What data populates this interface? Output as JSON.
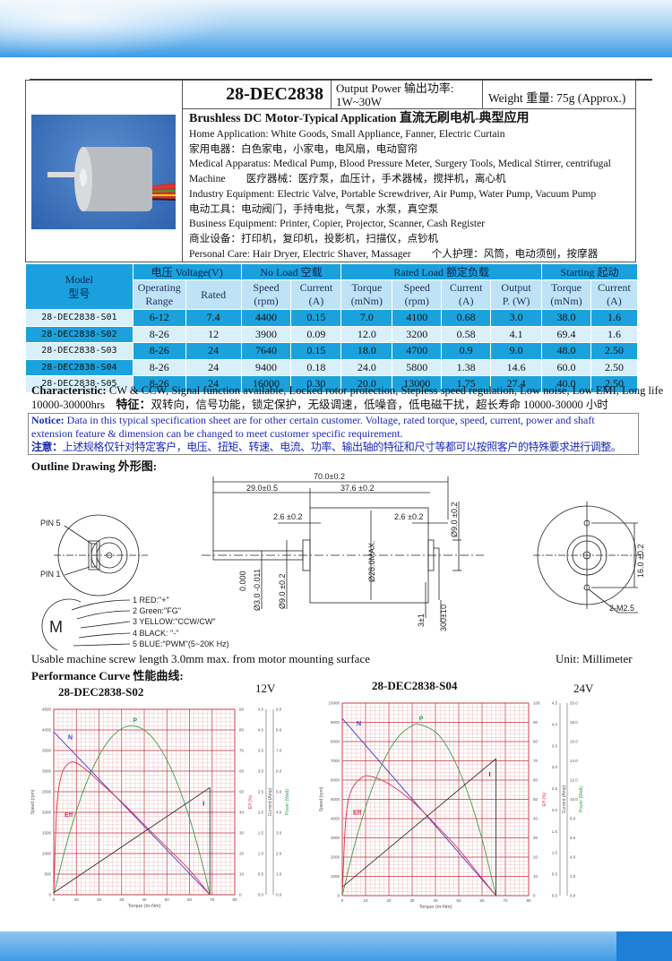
{
  "header": {
    "model": "28-DEC2838",
    "output_power_label": "Output Power 输出功率:",
    "output_power_value": "1W~30W",
    "weight": "Weight 重量: 75g (Approx.)"
  },
  "applications": {
    "heading_main": "Brushless DC Motor",
    "heading_sub": "-Typical Application",
    "heading_cn": " 直流无刷电机-典型应用",
    "lines": [
      "Home Application: White Goods, Small Appliance, Fanner, Electric Curtain",
      "家用电器：白色家电，小家电，电风扇，电动窗帘",
      "Medical Apparatus: Medical Pump, Blood Pressure Meter, Surgery Tools, Medical Stirrer, centrifugal",
      "Machine　　医疗器械：医疗泵，血压计，手术器械，搅拌机，离心机",
      "Industry Equipment: Electric Valve, Portable Screwdriver, Air Pump, Water Pump, Vacuum Pump",
      "电动工具：电动阀门，手持电批，气泵，水泵，真空泵",
      "Business Equipment: Printer, Copier, Projector, Scanner, Cash Register",
      "商业设备：打印机，复印机，投影机，扫描仪，点钞机",
      "Personal Care: Hair Dryer, Electric Shaver, Massager　　个人护理：风筒，电动须刨，按摩器"
    ]
  },
  "spec_table": {
    "groups": {
      "model": "Model",
      "model_cn": "型号",
      "voltage": "电压 Voltage(V)",
      "no_load": "No Load 空载",
      "rated_load": "Rated Load 额定负载",
      "starting": "Starting 起动"
    },
    "columns": [
      [
        "Operating",
        "Range"
      ],
      [
        "Rated",
        ""
      ],
      [
        "Speed",
        "(rpm)"
      ],
      [
        "Current",
        "(A)"
      ],
      [
        "Torque",
        "(mNm)"
      ],
      [
        "Speed",
        "(rpm)"
      ],
      [
        "Current",
        "(A)"
      ],
      [
        "Output",
        "P. (W)"
      ],
      [
        "Torque",
        "(mNm)"
      ],
      [
        "Current",
        "(A)"
      ]
    ],
    "rows": [
      [
        "28-DEC2838-S01",
        "6-12",
        "7.4",
        "4400",
        "0.15",
        "7.0",
        "4100",
        "0.68",
        "3.0",
        "38.0",
        "1.6"
      ],
      [
        "28-DEC2838-S02",
        "8-26",
        "12",
        "3900",
        "0.09",
        "12.0",
        "3200",
        "0.58",
        "4.1",
        "69.4",
        "1.6"
      ],
      [
        "28-DEC2838-S03",
        "8-26",
        "24",
        "7640",
        "0.15",
        "18.0",
        "4700",
        "0.9",
        "9.0",
        "48.0",
        "2.50"
      ],
      [
        "28-DEC2838-S04",
        "8-26",
        "24",
        "9400",
        "0.18",
        "24.0",
        "5800",
        "1.38",
        "14.6",
        "60.0",
        "2.50"
      ],
      [
        "28-DEC2838-S05",
        "8-26",
        "24",
        "16000",
        "0.30",
        "20.0",
        "13000",
        "1.75",
        "27.4",
        "40.0",
        "2.50"
      ]
    ]
  },
  "characteristic": {
    "label": "Characteristic:",
    "text": " CW & CCW, Signal function available, Locked rotor protection, Stepless speed regulation, Low noise, Low EMI, Long life",
    "text2": "10000-30000hrs　",
    "label_cn": "特征：",
    "text_cn": "双转向，信号功能，锁定保护，无级调速，低噪音，低电磁干扰，超长寿命 10000-30000 小时"
  },
  "notice": {
    "label": "Notice:",
    "text": " Data in this typical specification sheet are for other certain customer. Voltage, rated torque, speed, current, power and shaft extension feature & dimension can be changed to meet customer specific requirement.",
    "label_cn": "注意：",
    "text_cn": "上述规格仅针对特定客户，电压、扭矩、转速、电流、功率、输出轴的特征和尺寸等都可以按照客户的特殊要求进行调整。"
  },
  "outline": {
    "heading": "Outline Drawing 外形图:",
    "pin5": "PIN 5",
    "pin1": "PIN 1",
    "motor_symbol": "M",
    "wires": [
      "1 RED:\"+\"",
      "2 Green:\"FG\"",
      "3 YELLOW:\"CCW/CW\"",
      "4 BLACK: \"-\"",
      "5 BLUE:\"PWM\"(5~20K Hz)"
    ],
    "dims": {
      "total": "70.0±0.2",
      "shaft": "29.0±0.5",
      "body": "37.6 ±0.2",
      "front_boss": "2.6 ±0.2",
      "rear_boss": "2.6 ±0.2",
      "rear_dia": "Ø9.0 ±0.2",
      "body_dia": "Ø28.0MAX.",
      "shaft_dia": "Ø3.0 -0.011",
      "shaft_tol": "0.000",
      "boss_dia": "Ø9.0 ±0.2",
      "cable_a": "3±1",
      "cable_b": "300±10",
      "hole_spacing": "16.0 ±0.2",
      "screw": "2-M2.5"
    },
    "screw_note": "Usable machine screw length 3.0mm max. from motor mounting surface",
    "unit": "Unit: Millimeter"
  },
  "performance_heading": "Performance Curve 性能曲线:",
  "chart_data": [
    {
      "type": "line",
      "title": "28-DEC2838-S02",
      "voltage": "12V",
      "xlabel": "Torque (m-Nm)",
      "xlim": [
        0,
        80
      ],
      "x_ticks": [
        "0",
        "10",
        "20",
        "30",
        "40",
        "50",
        "60",
        "70",
        "80"
      ],
      "axes": {
        "speed": {
          "label": "Speed (rpm)",
          "range": [
            0,
            4500
          ],
          "ticks": [
            "0",
            "500",
            "1000",
            "1500",
            "2000",
            "2500",
            "3000",
            "3500",
            "4000",
            "4500"
          ]
        },
        "eff": {
          "label": "Eff (%)",
          "range": [
            0,
            90
          ],
          "ticks": [
            "0",
            "10",
            "20",
            "30",
            "40",
            "50",
            "60",
            "70",
            "80",
            "90"
          ]
        },
        "current": {
          "label": "Current (Amp)",
          "range": [
            0,
            4.5
          ],
          "ticks": [
            "0.0",
            "0.5",
            "1.0",
            "1.5",
            "2.0",
            "2.5",
            "3.0",
            "3.5",
            "4.0",
            "4.5"
          ]
        },
        "power": {
          "label": "Power (Watt)",
          "range": [
            0,
            9
          ],
          "ticks": [
            "0.0",
            "1.0",
            "2.0",
            "3.0",
            "4.0",
            "5.0",
            "6.0",
            "7.0",
            "8.0",
            "9.0"
          ]
        }
      },
      "grid": true,
      "series": [
        {
          "name": "N",
          "axis": "speed",
          "color": "#3a3ad0",
          "points": [
            [
              0,
              3950
            ],
            [
              69,
              0
            ]
          ]
        },
        {
          "name": "Eff",
          "axis": "eff",
          "color": "#e0304a",
          "points": [
            [
              0,
              0
            ],
            [
              1,
              35
            ],
            [
              2,
              50
            ],
            [
              4,
              60
            ],
            [
              7,
              64
            ],
            [
              10,
              64
            ],
            [
              15,
              60
            ],
            [
              20,
              55
            ],
            [
              30,
              45
            ],
            [
              40,
              34
            ],
            [
              50,
              23
            ],
            [
              60,
              12
            ],
            [
              69,
              0
            ]
          ]
        },
        {
          "name": "P",
          "axis": "power",
          "color": "#3aa048",
          "points": [
            [
              0,
              0
            ],
            [
              5,
              2.2
            ],
            [
              10,
              4.06
            ],
            [
              15,
              5.58
            ],
            [
              20,
              6.75
            ],
            [
              25,
              7.58
            ],
            [
              30,
              8.06
            ],
            [
              35,
              8.2
            ],
            [
              40,
              7.99
            ],
            [
              45,
              7.44
            ],
            [
              50,
              6.54
            ],
            [
              55,
              5.3
            ],
            [
              60,
              3.72
            ],
            [
              65,
              1.79
            ],
            [
              69,
              0
            ]
          ]
        },
        {
          "name": "I",
          "axis": "current",
          "color": "#333333",
          "points": [
            [
              0,
              0.05
            ],
            [
              69,
              2.6
            ]
          ]
        }
      ]
    },
    {
      "type": "line",
      "title": "28-DEC2838-S04",
      "voltage": "24V",
      "xlabel": "Torque (m-Nm)",
      "xlim": [
        0,
        80
      ],
      "x_ticks": [
        "0",
        "10",
        "20",
        "30",
        "40",
        "50",
        "60",
        "70",
        "80"
      ],
      "axes": {
        "speed": {
          "label": "Speed (rpm)",
          "range": [
            0,
            10000
          ],
          "ticks": [
            "0",
            "1000",
            "2000",
            "3000",
            "4000",
            "5000",
            "6000",
            "7000",
            "8000",
            "9000",
            "10000"
          ]
        },
        "eff": {
          "label": "Eff (%)",
          "range": [
            0,
            100
          ],
          "ticks": [
            "0",
            "10",
            "20",
            "30",
            "40",
            "50",
            "60",
            "70",
            "80",
            "90",
            "100"
          ]
        },
        "current": {
          "label": "Current (Amp)",
          "range": [
            0,
            4.5
          ],
          "ticks": [
            "0.0",
            "0.5",
            "1.0",
            "1.5",
            "2.0",
            "2.5",
            "3.0",
            "3.5",
            "4.0",
            "4.5"
          ]
        },
        "power": {
          "label": "Power (Watt)",
          "range": [
            0,
            20
          ],
          "ticks": [
            "0.0",
            "2.0",
            "4.0",
            "6.0",
            "8.0",
            "10.0",
            "12.0",
            "14.0",
            "16.0",
            "18.0",
            "20.0"
          ]
        }
      },
      "grid": true,
      "series": [
        {
          "name": "N",
          "axis": "speed",
          "color": "#3a3ad0",
          "points": [
            [
              0,
              9200
            ],
            [
              66,
              0
            ]
          ]
        },
        {
          "name": "Eff",
          "axis": "eff",
          "color": "#e0304a",
          "points": [
            [
              0,
              0
            ],
            [
              1,
              30
            ],
            [
              2,
              45
            ],
            [
              4,
              55
            ],
            [
              8,
              61
            ],
            [
              12,
              62
            ],
            [
              20,
              58
            ],
            [
              30,
              49
            ],
            [
              40,
              37
            ],
            [
              50,
              24
            ],
            [
              60,
              9
            ],
            [
              66,
              0
            ]
          ]
        },
        {
          "name": "P",
          "axis": "power",
          "color": "#3aa048",
          "points": [
            [
              0,
              0
            ],
            [
              5,
              4.99
            ],
            [
              10,
              9.15
            ],
            [
              15,
              12.5
            ],
            [
              20,
              15.04
            ],
            [
              25,
              16.75
            ],
            [
              30,
              17.65
            ],
            [
              33,
              17.8
            ],
            [
              40,
              17.0
            ],
            [
              45,
              15.45
            ],
            [
              50,
              13.08
            ],
            [
              55,
              9.89
            ],
            [
              60,
              5.88
            ],
            [
              66,
              0
            ]
          ]
        },
        {
          "name": "I",
          "axis": "current",
          "color": "#333333",
          "points": [
            [
              0,
              0.2
            ],
            [
              66,
              3.2
            ]
          ]
        }
      ]
    }
  ]
}
